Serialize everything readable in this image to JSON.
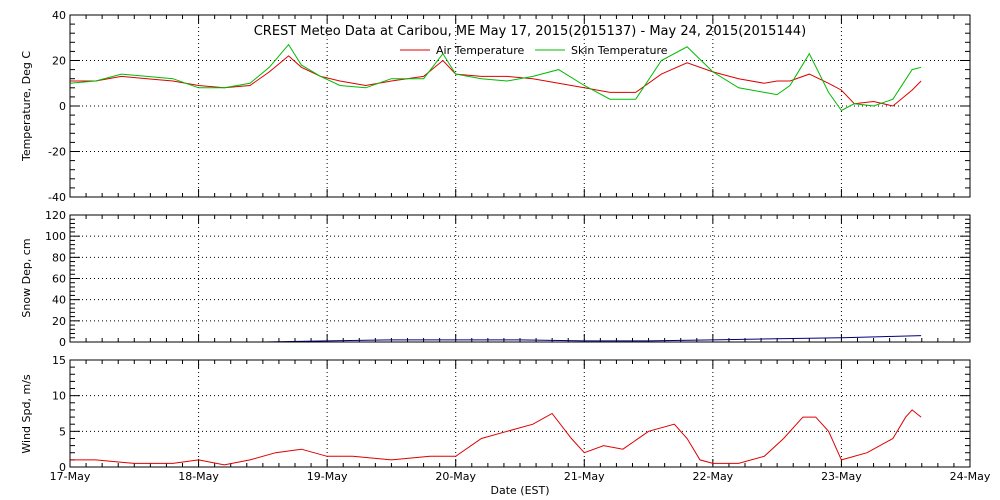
{
  "chart_data": [
    {
      "type": "line",
      "title": "CREST Meteo Data at Caribou, ME   May 17, 2015(2015137) - May 24, 2015(2015144)",
      "ylabel": "Temperature, Deg C",
      "xlim": [
        0,
        7
      ],
      "ylim": [
        -40,
        40
      ],
      "yticks": [
        -40,
        -20,
        0,
        20,
        40
      ],
      "ytick_labels": [
        "-40",
        "-20",
        "0",
        "20",
        "40"
      ],
      "grid": true,
      "legend": "top-center",
      "series": [
        {
          "name": "Air Temperature",
          "color": "#dd0000",
          "x": [
            0,
            0.2,
            0.4,
            0.6,
            0.8,
            1.0,
            1.2,
            1.4,
            1.55,
            1.7,
            1.8,
            1.95,
            2.1,
            2.3,
            2.5,
            2.75,
            2.9,
            3.0,
            3.2,
            3.4,
            3.6,
            3.8,
            4.0,
            4.2,
            4.4,
            4.6,
            4.8,
            5.0,
            5.2,
            5.4,
            5.5,
            5.6,
            5.75,
            5.9,
            6.0,
            6.1,
            6.25,
            6.4,
            6.55,
            6.62
          ],
          "y": [
            11,
            11,
            13,
            12,
            11,
            9,
            8,
            9,
            15,
            22,
            17,
            13,
            11,
            9,
            11,
            13,
            20,
            14,
            13,
            13,
            12,
            10,
            8,
            6,
            6,
            14,
            19,
            15,
            12,
            10,
            11,
            11,
            14,
            10,
            7,
            1,
            2,
            0,
            7,
            11
          ]
        },
        {
          "name": "Skin Temperature",
          "color": "#00bb00",
          "x": [
            0,
            0.2,
            0.4,
            0.6,
            0.8,
            1.0,
            1.2,
            1.4,
            1.55,
            1.7,
            1.8,
            1.95,
            2.1,
            2.3,
            2.5,
            2.75,
            2.9,
            3.0,
            3.2,
            3.4,
            3.6,
            3.8,
            4.0,
            4.2,
            4.4,
            4.6,
            4.8,
            5.0,
            5.2,
            5.4,
            5.5,
            5.6,
            5.75,
            5.9,
            6.0,
            6.1,
            6.25,
            6.4,
            6.55,
            6.62
          ],
          "y": [
            10,
            11,
            14,
            13,
            12,
            8,
            8,
            10,
            17,
            27,
            18,
            13,
            9,
            8,
            12,
            12,
            23,
            14,
            12,
            11,
            13,
            16,
            9,
            3,
            3,
            20,
            26,
            15,
            8,
            6,
            5,
            9,
            23,
            6,
            -2,
            1,
            0,
            3,
            16,
            17
          ]
        }
      ]
    },
    {
      "type": "line",
      "ylabel": "Snow Dep, cm",
      "xlim": [
        0,
        7
      ],
      "ylim": [
        0,
        120
      ],
      "yticks": [
        0,
        20,
        40,
        60,
        80,
        100,
        120
      ],
      "ytick_labels": [
        "0",
        "20",
        "40",
        "60",
        "80",
        "100",
        "120"
      ],
      "grid": true,
      "series": [
        {
          "color": "#000080",
          "x": [
            0,
            0.5,
            1.0,
            1.5,
            2.0,
            2.5,
            3.0,
            3.5,
            4.0,
            4.5,
            5.0,
            5.5,
            6.0,
            6.3,
            6.62
          ],
          "y": [
            0,
            0,
            0,
            0,
            1,
            2,
            2,
            2,
            1,
            1,
            2,
            3,
            4,
            5,
            6
          ]
        }
      ]
    },
    {
      "type": "line",
      "ylabel": "Wind Spd, m/s",
      "xlabel": "Date (EST)",
      "xlim": [
        0,
        7
      ],
      "ylim": [
        0,
        15
      ],
      "yticks": [
        0,
        5,
        10,
        15
      ],
      "ytick_labels": [
        "0",
        "5",
        "10",
        "15"
      ],
      "grid": true,
      "categories": [
        "17-May",
        "18-May",
        "19-May",
        "20-May",
        "21-May",
        "22-May",
        "23-May",
        "24-May"
      ],
      "series": [
        {
          "color": "#dd0000",
          "x": [
            0,
            0.2,
            0.5,
            0.8,
            1.0,
            1.2,
            1.4,
            1.6,
            1.8,
            2.0,
            2.2,
            2.5,
            2.8,
            3.0,
            3.2,
            3.4,
            3.6,
            3.75,
            3.9,
            4.0,
            4.15,
            4.3,
            4.5,
            4.7,
            4.8,
            4.9,
            5.0,
            5.2,
            5.4,
            5.55,
            5.7,
            5.8,
            5.9,
            6.0,
            6.2,
            6.4,
            6.5,
            6.55,
            6.62
          ],
          "y": [
            1,
            1,
            0.5,
            0.5,
            1,
            0.3,
            1,
            2,
            2.5,
            1.5,
            1.5,
            1,
            1.5,
            1.5,
            4,
            5,
            6,
            7.5,
            4,
            2,
            3,
            2.5,
            5,
            6,
            4,
            1,
            0.5,
            0.5,
            1.5,
            4,
            7,
            7,
            5,
            1,
            2,
            4,
            7,
            8,
            7
          ]
        }
      ]
    }
  ]
}
